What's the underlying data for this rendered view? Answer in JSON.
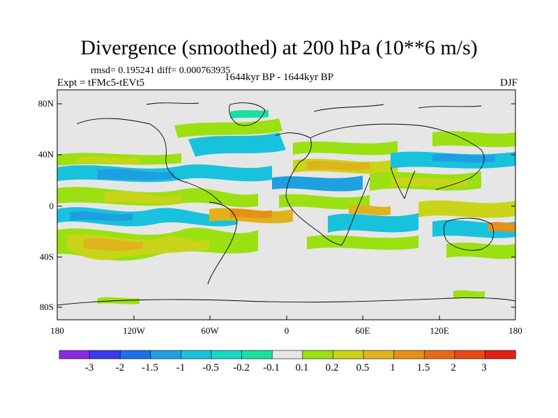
{
  "header": {
    "title": "Divergence (smoothed) at 200 hPa (10**6 m/s)",
    "stats": "rmsd= 0.195241 diff= 0.000763935",
    "experiment": "Expt = tFMc5-tEVt5",
    "period": "1644kyr BP - 1644kyr BP",
    "season": "DJF"
  },
  "axes": {
    "lat_labels": [
      "80N",
      "40N",
      "0",
      "40S",
      "80S"
    ],
    "lon_labels": [
      "180",
      "120W",
      "60W",
      "0",
      "60E",
      "120E",
      "180"
    ]
  },
  "colorbar": {
    "labels": [
      "-3",
      "-2",
      "-1.5",
      "-1",
      "-0.5",
      "-0.2",
      "-0.1",
      "0.1",
      "0.2",
      "0.5",
      "1",
      "1.5",
      "2",
      "3"
    ],
    "colors": [
      "#8a2be2",
      "#3a3aee",
      "#1e6fe6",
      "#1ea0e0",
      "#19c2dc",
      "#18d8c8",
      "#1be0a0",
      "#e6e6e6",
      "#9be011",
      "#c9d418",
      "#e0b21c",
      "#e69016",
      "#e86a14",
      "#e84a14",
      "#e61e14"
    ]
  }
}
